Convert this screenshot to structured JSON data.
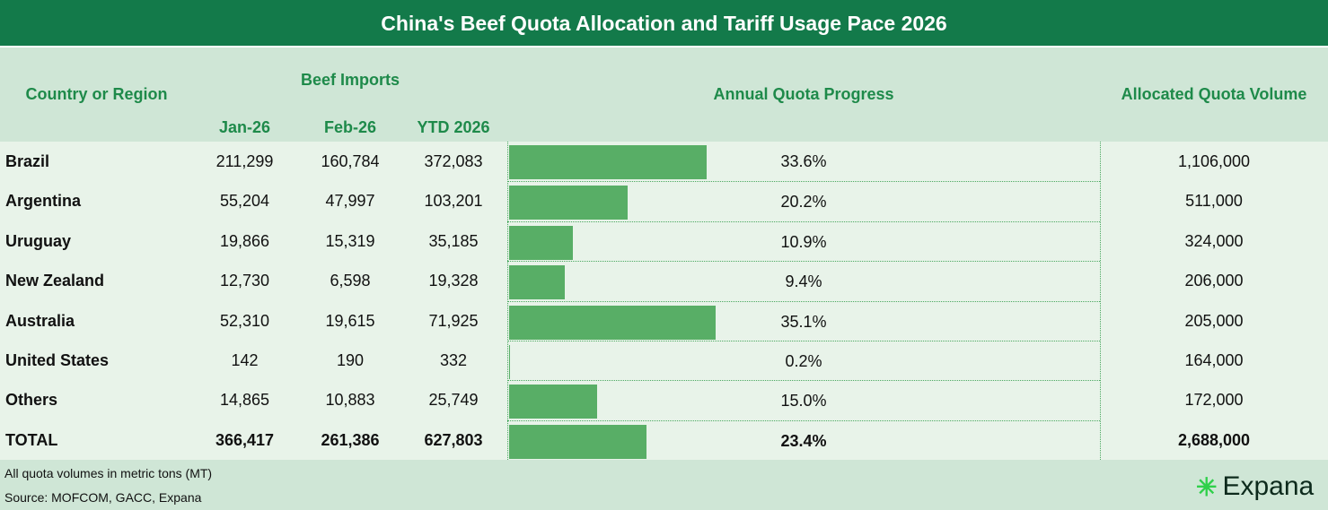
{
  "title": "China's Beef Quota Allocation and Tariff Usage Pace 2026",
  "headers": {
    "country": "Country or Region",
    "beef_imports": "Beef Imports",
    "jan": "Jan-26",
    "feb": "Feb-26",
    "ytd": "YTD 2026",
    "progress": "Annual Quota Progress",
    "allocated": "Allocated Quota Volume"
  },
  "chart_data": {
    "type": "table",
    "title": "China's Beef Quota Allocation and Tariff Usage Pace 2026",
    "rows": [
      {
        "country": "Brazil",
        "jan": "211,299",
        "feb": "160,784",
        "ytd": "372,083",
        "pct": "33.6%",
        "value": 33.6,
        "allocated": "1,106,000"
      },
      {
        "country": "Argentina",
        "jan": "55,204",
        "feb": "47,997",
        "ytd": "103,201",
        "pct": "20.2%",
        "value": 20.2,
        "allocated": "511,000"
      },
      {
        "country": "Uruguay",
        "jan": "19,866",
        "feb": "15,319",
        "ytd": "35,185",
        "pct": "10.9%",
        "value": 10.9,
        "allocated": "324,000"
      },
      {
        "country": "New Zealand",
        "jan": "12,730",
        "feb": "6,598",
        "ytd": "19,328",
        "pct": "9.4%",
        "value": 9.4,
        "allocated": "206,000"
      },
      {
        "country": "Australia",
        "jan": "52,310",
        "feb": "19,615",
        "ytd": "71,925",
        "pct": "35.1%",
        "value": 35.1,
        "allocated": "205,000"
      },
      {
        "country": "United States",
        "jan": "142",
        "feb": "190",
        "ytd": "332",
        "pct": "0.2%",
        "value": 0.2,
        "allocated": "164,000"
      },
      {
        "country": "Others",
        "jan": "14,865",
        "feb": "10,883",
        "ytd": "25,749",
        "pct": "15.0%",
        "value": 15.0,
        "allocated": "172,000"
      },
      {
        "country": "TOTAL",
        "jan": "366,417",
        "feb": "261,386",
        "ytd": "627,803",
        "pct": "23.4%",
        "value": 23.4,
        "allocated": "2,688,000"
      }
    ],
    "bar_max": 100
  },
  "footer": {
    "note": "All quota volumes in metric tons (MT)",
    "source": "Source: MOFCOM, GACC, Expana"
  },
  "logo": "Expana",
  "colors": {
    "title_bg": "#137a4a",
    "bar": "#58ae66",
    "header_text": "#1e8a4a"
  }
}
